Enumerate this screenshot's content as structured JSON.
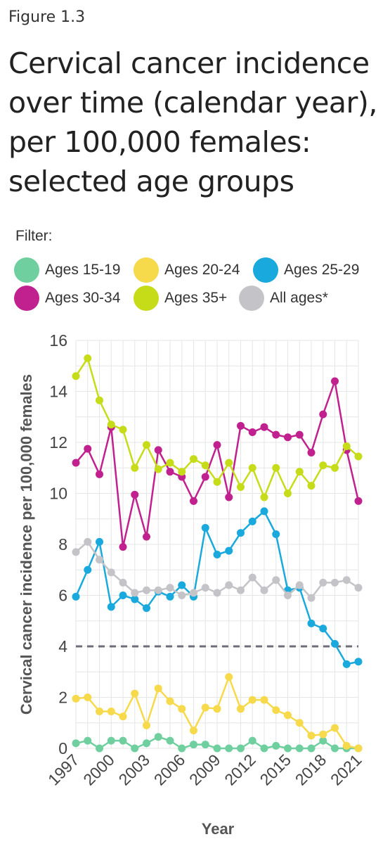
{
  "figure_label": "Figure 1.3",
  "title": "Cervical cancer incidence over time (calendar year), per 100,000 females: selected age groups",
  "filter_label": "Filter:",
  "chart_data": {
    "type": "line",
    "xlabel": "Year",
    "ylabel": "Cervical cancer incidence per 100,000 females",
    "x": [
      1997,
      1998,
      1999,
      2000,
      2001,
      2002,
      2003,
      2004,
      2005,
      2006,
      2007,
      2008,
      2009,
      2010,
      2011,
      2012,
      2013,
      2014,
      2015,
      2016,
      2017,
      2018,
      2019,
      2020,
      2021
    ],
    "xticks": [
      1997,
      2000,
      2003,
      2006,
      2009,
      2012,
      2015,
      2018,
      2021
    ],
    "ylim": [
      0,
      16
    ],
    "yticks": [
      0,
      2,
      4,
      6,
      8,
      10,
      12,
      14,
      16
    ],
    "grid": true,
    "reference_line": {
      "y": 4,
      "style": "dashed",
      "color": "#6e6e78"
    },
    "series": [
      {
        "name": "Ages 15-19",
        "color": "#6fcf9e",
        "values": [
          0.2,
          0.3,
          0.0,
          0.3,
          0.3,
          0.0,
          0.2,
          0.45,
          0.3,
          0.0,
          0.15,
          0.15,
          0.0,
          0.0,
          0.0,
          0.3,
          0.0,
          0.1,
          0.0,
          0.0,
          0.0,
          0.3,
          0.0,
          0.0,
          0.0
        ]
      },
      {
        "name": "Ages 20-24",
        "color": "#f7d94c",
        "values": [
          1.95,
          2.0,
          1.45,
          1.45,
          1.25,
          2.15,
          0.9,
          2.35,
          1.85,
          1.55,
          0.7,
          1.6,
          1.55,
          2.8,
          1.55,
          1.9,
          1.9,
          1.5,
          1.3,
          1.0,
          0.5,
          0.55,
          0.8,
          0.1,
          0.0
        ]
      },
      {
        "name": "Ages 25-29",
        "color": "#1aa9dc",
        "values": [
          5.95,
          7.0,
          8.1,
          5.55,
          6.0,
          5.85,
          5.5,
          6.15,
          5.95,
          6.4,
          5.95,
          8.65,
          7.6,
          7.75,
          8.45,
          8.9,
          9.3,
          8.4,
          6.2,
          6.3,
          4.9,
          4.7,
          4.1,
          3.3,
          3.4
        ]
      },
      {
        "name": "Ages 30-34",
        "color": "#c0218f",
        "values": [
          11.2,
          11.75,
          10.75,
          12.6,
          7.9,
          9.95,
          8.3,
          11.7,
          10.85,
          10.65,
          9.7,
          10.65,
          11.9,
          9.85,
          12.65,
          12.4,
          12.6,
          12.3,
          12.2,
          12.3,
          11.6,
          13.1,
          14.4,
          11.7,
          9.7
        ]
      },
      {
        "name": "Ages 35+",
        "color": "#c6dc19",
        "values": [
          14.6,
          15.3,
          13.65,
          12.7,
          12.5,
          11.0,
          11.9,
          10.95,
          11.2,
          10.85,
          11.35,
          11.1,
          10.45,
          11.2,
          10.25,
          11.0,
          9.85,
          11.0,
          10.0,
          10.85,
          10.3,
          11.1,
          11.0,
          11.85,
          11.45
        ]
      },
      {
        "name": "All ages*",
        "color": "#c4c4c8",
        "values": [
          7.7,
          8.1,
          7.4,
          6.9,
          6.5,
          6.1,
          6.2,
          6.2,
          6.3,
          6.0,
          6.1,
          6.3,
          6.1,
          6.4,
          6.2,
          6.7,
          6.2,
          6.6,
          6.0,
          6.4,
          5.9,
          6.5,
          6.5,
          6.6,
          6.3
        ]
      }
    ]
  }
}
